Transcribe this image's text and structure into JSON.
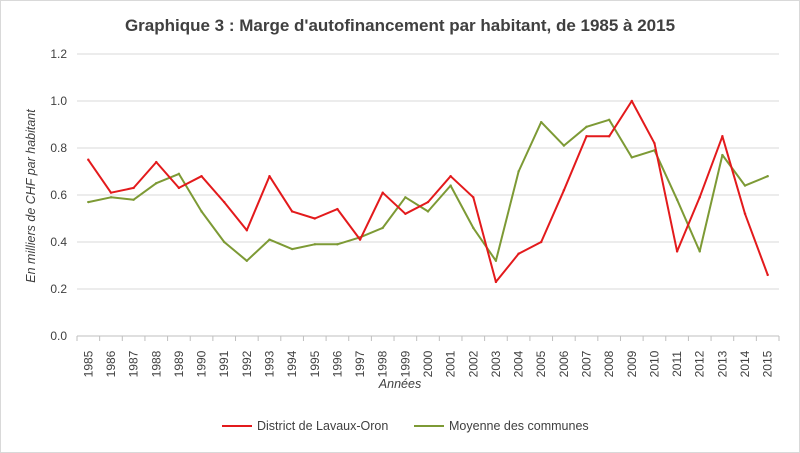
{
  "chart_data": {
    "type": "line",
    "title": "Graphique 3 : Marge d'autofinancement par habitant, de 1985 à 2015",
    "xlabel": "Années",
    "ylabel": "En milliers de CHF par habitant",
    "ylim": [
      0,
      1.2
    ],
    "yticks": [
      "0.0",
      "0.2",
      "0.4",
      "0.6",
      "0.8",
      "1.0",
      "1.2"
    ],
    "grid": true,
    "legend_position": "bottom",
    "categories": [
      "1985",
      "1986",
      "1987",
      "1988",
      "1989",
      "1990",
      "1991",
      "1992",
      "1993",
      "1994",
      "1995",
      "1996",
      "1997",
      "1998",
      "1999",
      "2000",
      "2001",
      "2002",
      "2003",
      "2004",
      "2005",
      "2006",
      "2007",
      "2008",
      "2009",
      "2010",
      "2011",
      "2012",
      "2013",
      "2014",
      "2015"
    ],
    "series": [
      {
        "name": "District de Lavaux-Oron",
        "color": "#e31a1c",
        "values": [
          0.75,
          0.61,
          0.63,
          0.74,
          0.63,
          0.68,
          0.57,
          0.45,
          0.68,
          0.53,
          0.5,
          0.54,
          0.41,
          0.61,
          0.52,
          0.57,
          0.68,
          0.59,
          0.23,
          0.35,
          0.4,
          0.62,
          0.85,
          0.85,
          1.0,
          0.82,
          0.36,
          0.59,
          0.85,
          0.52,
          0.26
        ]
      },
      {
        "name": "Moyenne des communes",
        "color": "#7d9a35",
        "values": [
          0.57,
          0.59,
          0.58,
          0.65,
          0.69,
          0.53,
          0.4,
          0.32,
          0.41,
          0.37,
          0.39,
          0.39,
          0.42,
          0.46,
          0.59,
          0.53,
          0.64,
          0.46,
          0.32,
          0.7,
          0.91,
          0.81,
          0.89,
          0.92,
          0.76,
          0.79,
          0.58,
          0.36,
          0.77,
          0.64,
          0.68
        ]
      }
    ]
  }
}
